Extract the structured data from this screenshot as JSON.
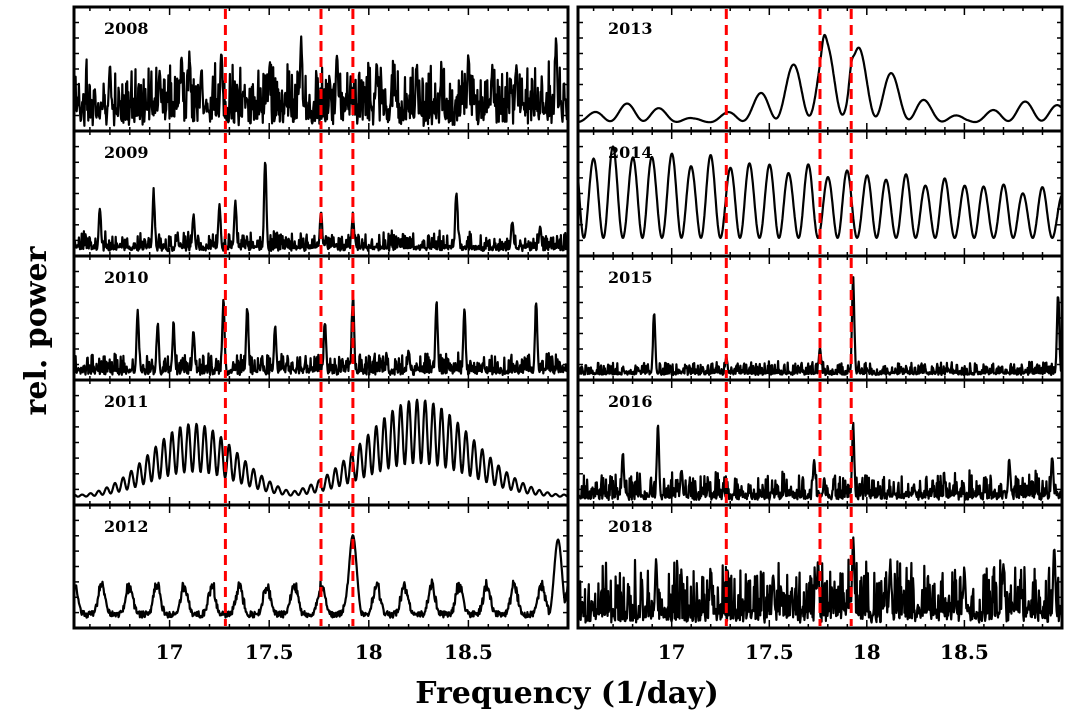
{
  "chart_data": {
    "type": "line",
    "xlabel": "Frequency (1/day)",
    "ylabel": "rel. power",
    "xlim": [
      16.52,
      19.0
    ],
    "x_ticks": [
      17,
      17.5,
      18,
      18.5
    ],
    "x_tick_labels": [
      "17",
      "17.5",
      "18",
      "18.5"
    ],
    "reference_lines": [
      17.28,
      17.76,
      17.92
    ],
    "reference_line_color": "#ff0000",
    "grid": false,
    "panels": [
      {
        "column": 0,
        "row": 0,
        "year": "2008",
        "style": "noisy",
        "baseline": 0.22,
        "noise": 0.18,
        "spikes": [
          [
            16.7,
            0.62
          ],
          [
            16.95,
            0.55
          ],
          [
            17.06,
            0.68
          ],
          [
            17.1,
            0.72
          ],
          [
            17.16,
            0.55
          ],
          [
            17.26,
            0.78
          ],
          [
            17.5,
            0.55
          ],
          [
            17.66,
            0.85
          ],
          [
            17.84,
            0.72
          ],
          [
            18.04,
            0.6
          ],
          [
            18.24,
            0.62
          ],
          [
            18.5,
            0.72
          ],
          [
            18.62,
            0.58
          ],
          [
            18.74,
            0.62
          ],
          [
            18.94,
            0.82
          ]
        ]
      },
      {
        "column": 0,
        "row": 1,
        "year": "2009",
        "style": "sparse",
        "baseline": 0.04,
        "noise": 0.07,
        "spikes": [
          [
            16.65,
            0.4
          ],
          [
            16.92,
            0.58
          ],
          [
            17.12,
            0.36
          ],
          [
            17.25,
            0.45
          ],
          [
            17.33,
            0.5
          ],
          [
            17.48,
            0.86
          ],
          [
            17.76,
            0.4
          ],
          [
            17.92,
            0.36
          ],
          [
            18.44,
            0.62
          ],
          [
            18.72,
            0.3
          ],
          [
            18.86,
            0.24
          ]
        ]
      },
      {
        "column": 0,
        "row": 2,
        "year": "2010",
        "style": "sparse",
        "baseline": 0.05,
        "noise": 0.08,
        "spikes": [
          [
            16.84,
            0.62
          ],
          [
            16.94,
            0.52
          ],
          [
            17.02,
            0.5
          ],
          [
            17.12,
            0.45
          ],
          [
            17.27,
            0.72
          ],
          [
            17.39,
            0.68
          ],
          [
            17.53,
            0.48
          ],
          [
            17.78,
            0.55
          ],
          [
            17.92,
            0.8
          ],
          [
            18.2,
            0.25
          ],
          [
            18.34,
            0.72
          ],
          [
            18.48,
            0.62
          ],
          [
            18.84,
            0.7
          ]
        ]
      },
      {
        "column": 0,
        "row": 3,
        "year": "2011",
        "style": "beat",
        "alias_period": 0.041,
        "envelopes": [
          [
            17.12,
            0.22,
            0.68
          ],
          [
            18.25,
            0.27,
            0.9
          ]
        ]
      },
      {
        "column": 0,
        "row": 4,
        "year": "2012",
        "style": "alias",
        "alias_period": 0.138,
        "base_amp": 0.32,
        "spikes": [
          [
            17.92,
            0.82
          ],
          [
            18.95,
            0.78
          ]
        ]
      },
      {
        "column": 1,
        "row": 0,
        "year": "2013",
        "style": "smooth",
        "period": 0.17,
        "peaks": [
          [
            17.85,
            0.28,
            0.75
          ],
          [
            16.8,
            0.18,
            0.18
          ],
          [
            18.85,
            0.2,
            0.2
          ]
        ],
        "spikes": [
          [
            17.78,
            0.1
          ],
          [
            17.92,
            0.12
          ]
        ]
      },
      {
        "column": 1,
        "row": 1,
        "year": "2014",
        "style": "wave",
        "period": 0.1,
        "amp_start": 0.88,
        "amp_end": 0.45
      },
      {
        "column": 1,
        "row": 2,
        "year": "2015",
        "style": "sparse",
        "baseline": 0.02,
        "noise": 0.05,
        "spikes": [
          [
            16.91,
            0.62
          ],
          [
            17.28,
            0.18
          ],
          [
            17.76,
            0.26
          ],
          [
            17.93,
            0.94
          ],
          [
            18.98,
            0.82
          ]
        ]
      },
      {
        "column": 1,
        "row": 3,
        "year": "2016",
        "style": "sparse",
        "baseline": 0.06,
        "noise": 0.1,
        "spikes": [
          [
            16.75,
            0.45
          ],
          [
            16.93,
            0.72
          ],
          [
            17.05,
            0.3
          ],
          [
            17.73,
            0.38
          ],
          [
            17.93,
            0.72
          ],
          [
            18.73,
            0.4
          ],
          [
            18.95,
            0.42
          ]
        ]
      },
      {
        "column": 1,
        "row": 4,
        "year": "2018",
        "style": "noisy",
        "baseline": 0.12,
        "noise": 0.2,
        "spikes": [
          [
            16.92,
            0.6
          ],
          [
            17.2,
            0.55
          ],
          [
            17.52,
            0.48
          ],
          [
            17.75,
            0.6
          ],
          [
            17.93,
            0.9
          ],
          [
            18.12,
            0.62
          ],
          [
            18.5,
            0.55
          ],
          [
            18.7,
            0.6
          ],
          [
            18.96,
            0.8
          ]
        ]
      }
    ]
  }
}
